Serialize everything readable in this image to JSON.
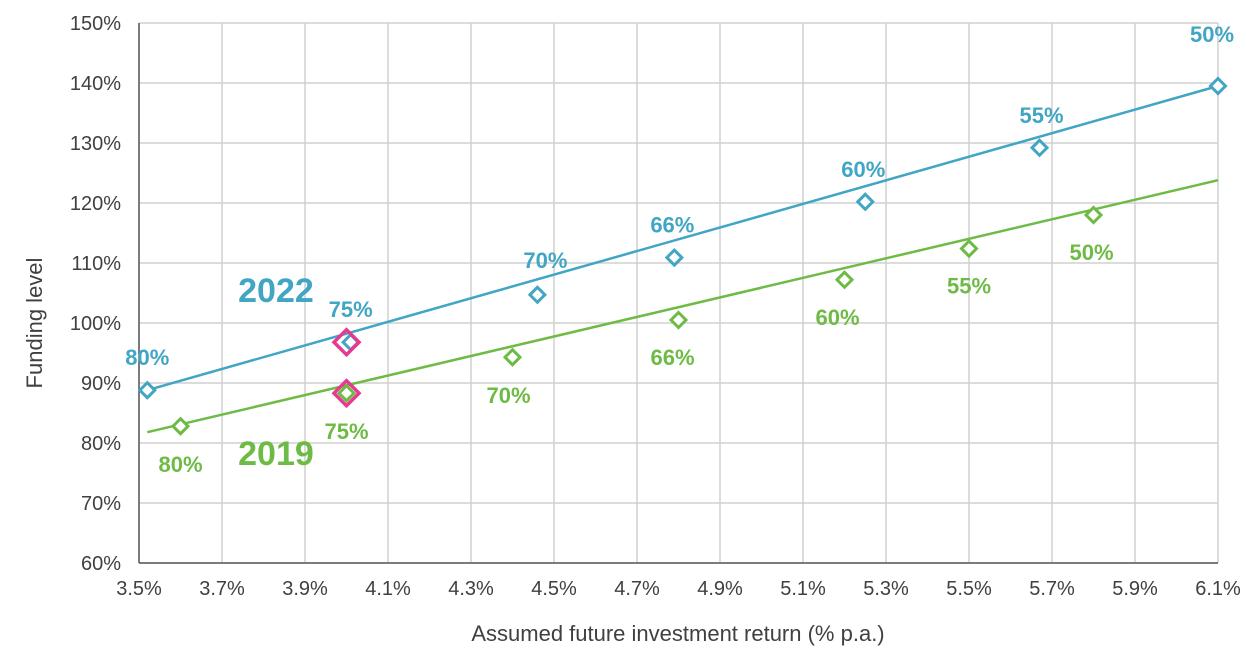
{
  "chart_data": {
    "type": "line",
    "xlabel": "Assumed future investment return (% p.a.)",
    "ylabel": "Funding level",
    "xlim": [
      3.5,
      6.1
    ],
    "ylim": [
      60,
      150
    ],
    "x_ticks": [
      "3.5%",
      "3.7%",
      "3.9%",
      "4.1%",
      "4.3%",
      "4.5%",
      "4.7%",
      "4.9%",
      "5.1%",
      "5.3%",
      "5.5%",
      "5.7%",
      "5.9%",
      "6.1%"
    ],
    "y_ticks": [
      "60%",
      "70%",
      "80%",
      "90%",
      "100%",
      "110%",
      "120%",
      "130%",
      "140%",
      "150%"
    ],
    "grid": true,
    "series": [
      {
        "name": "2022",
        "color": "#41a5c4",
        "line": {
          "x": [
            3.52,
            6.1
          ],
          "y": [
            88.8,
            139.5
          ]
        },
        "points": [
          {
            "x": 3.52,
            "y": 88.8,
            "label": "80%"
          },
          {
            "x": 4.01,
            "y": 96.8,
            "label": "75%"
          },
          {
            "x": 4.46,
            "y": 104.7,
            "label": "70%"
          },
          {
            "x": 4.79,
            "y": 110.9,
            "label": "66%"
          },
          {
            "x": 5.25,
            "y": 120.2,
            "label": "60%"
          },
          {
            "x": 5.67,
            "y": 129.2,
            "label": "55%"
          },
          {
            "x": 6.1,
            "y": 139.5,
            "label": "50%"
          }
        ]
      },
      {
        "name": "2019",
        "color": "#6dbb45",
        "line": {
          "x": [
            3.52,
            6.1
          ],
          "y": [
            81.8,
            123.8
          ]
        },
        "points": [
          {
            "x": 3.6,
            "y": 82.8,
            "label": "80%"
          },
          {
            "x": 4.0,
            "y": 88.3,
            "label": "75%"
          },
          {
            "x": 4.4,
            "y": 94.3,
            "label": "70%"
          },
          {
            "x": 4.8,
            "y": 100.5,
            "label": "66%"
          },
          {
            "x": 5.2,
            "y": 107.2,
            "label": "60%"
          },
          {
            "x": 5.5,
            "y": 112.4,
            "label": "55%"
          },
          {
            "x": 5.8,
            "y": 118.0,
            "label": "50%"
          }
        ]
      }
    ],
    "highlight": {
      "color": "#e6398f",
      "x": 4.0,
      "series_y": [
        96.8,
        88.3
      ]
    }
  }
}
